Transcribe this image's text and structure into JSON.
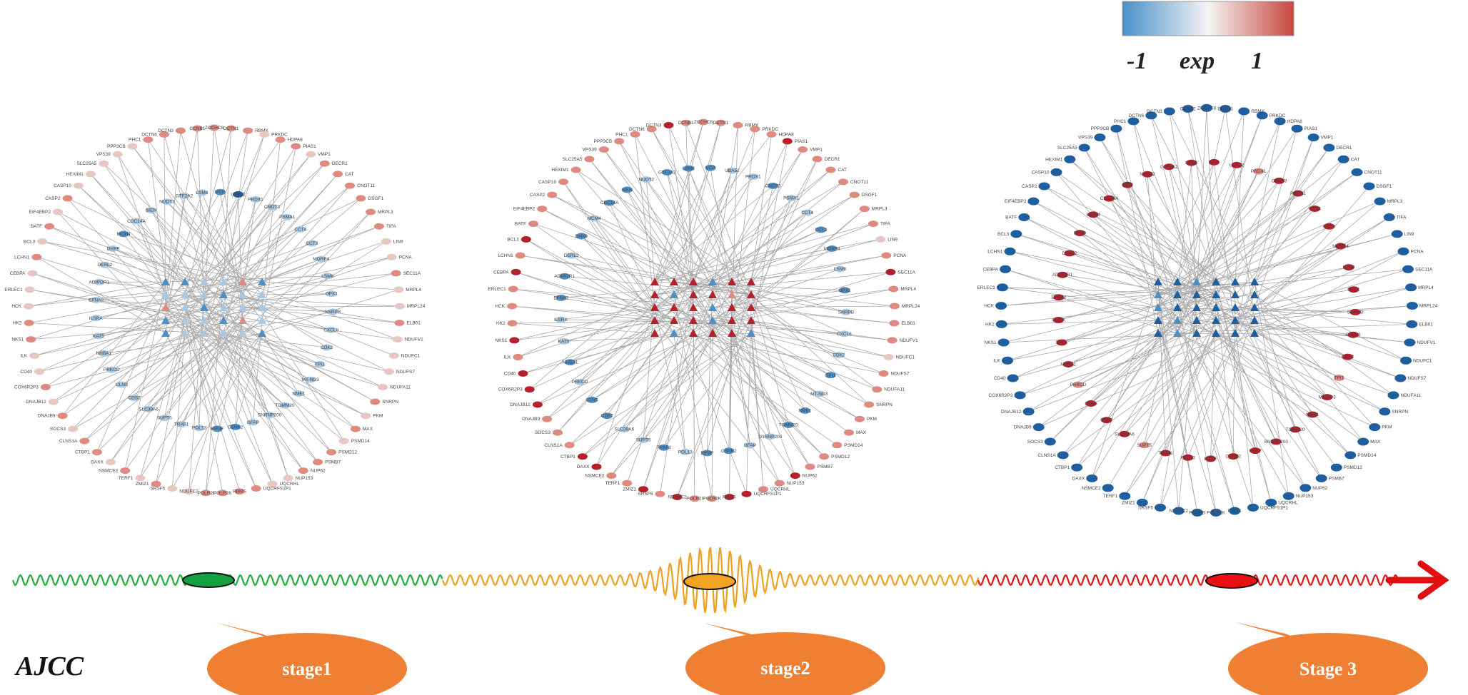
{
  "legend": {
    "low_label": "-1",
    "title": "exp",
    "high_label": "1",
    "colors": {
      "low": "#4a90c8",
      "mid": "#f4f4f4",
      "high": "#c8473f"
    }
  },
  "timeline": {
    "label": "AJCC",
    "segments": [
      {
        "name": "stage1",
        "color": "#1fae3f"
      },
      {
        "name": "stage2",
        "color": "#f0a020"
      },
      {
        "name": "stage3",
        "color": "#e01515"
      }
    ],
    "arrow_color": "#e01010",
    "markers": [
      {
        "name": "stage1",
        "fill": "#13a040"
      },
      {
        "name": "stage2",
        "fill": "#f2a321"
      },
      {
        "name": "stage3",
        "fill": "#e81010"
      }
    ]
  },
  "callouts": [
    {
      "label": "stage1",
      "color": "#ee7f33"
    },
    {
      "label": "stage2",
      "color": "#ee7f33"
    },
    {
      "label": "Stage 3",
      "color": "#ee7f33"
    }
  ],
  "networks": [
    {
      "name": "stage1",
      "outer_labels": [
        "ZCCHC8",
        "DCTN1",
        "RBMX",
        "PRKDC",
        "HDPA8",
        "PIAS1",
        "VMP1",
        "DECR1",
        "CAT",
        "CNOT11",
        "DSGF1",
        "MRPL3",
        "TIFA",
        "LIN9",
        "PCNA",
        "SEC11A",
        "MRPL4",
        "MRPL24",
        "ELB01",
        "NDUFV1",
        "NDUFC1",
        "NDUFS7",
        "NDUFA11",
        "SNRPN",
        "PKM",
        "MAX",
        "PSMD14",
        "PSMD12",
        "PSMB7",
        "NUP62",
        "NUP153",
        "UQCRHL",
        "UQCRFS1P1",
        "RBMS",
        "POLR2K",
        "POLR2I",
        "NDUFC2",
        "SRSF5",
        "ZMIZ1",
        "TERF1",
        "NSMCE2",
        "DAXX",
        "CTBP1",
        "CLNS1A",
        "SOCS3",
        "DNAJB9",
        "DNAJB12",
        "COX6R2P3",
        "CD40",
        "ILK",
        "NKS1",
        "HK2",
        "HCK",
        "ERLEC1",
        "CEBPA",
        "LCHN1",
        "BCL3",
        "BATF",
        "EIF4EBP2",
        "CASP2",
        "CASP10",
        "HEXIM1",
        "SLC25A5",
        "VPS39",
        "PPP3CB",
        "PHC1",
        "DCTN6",
        "DCTN3",
        "CCNB1"
      ],
      "outer_colors": [
        "h",
        "h",
        "h",
        "m",
        "h",
        "h",
        "m",
        "h",
        "h",
        "h",
        "h",
        "h",
        "h",
        "m",
        "m",
        "h",
        "m",
        "m",
        "h",
        "m",
        "m",
        "m",
        "m",
        "h",
        "m",
        "h",
        "m",
        "h",
        "h",
        "h",
        "m",
        "m",
        "h",
        "h",
        "h",
        "h",
        "m",
        "m",
        "h",
        "m",
        "h",
        "m",
        "h",
        "h",
        "m",
        "h",
        "m",
        "h",
        "m",
        "m",
        "h",
        "h",
        "m",
        "m",
        "m",
        "h",
        "m",
        "h",
        "m",
        "h",
        "m",
        "m",
        "m",
        "m",
        "m",
        "h",
        "h",
        "h",
        "h"
      ],
      "mid_labels": [
        "VCP",
        "UBA52",
        "PRDX1",
        "CNOT3",
        "PSMA1",
        "CCT4",
        "CCT3",
        "MORF4",
        "LSM8",
        "OPX1",
        "SNRPB",
        "CXCL8",
        "CDK2",
        "TPI1",
        "MT-ND3",
        "NME1",
        "TOMM20",
        "SNRNP200",
        "GFAP",
        "CSNK2",
        "EIF3F",
        "POL13",
        "TRAF1",
        "SUPT5",
        "SLC39A6",
        "CDS7",
        "CLNS",
        "PRKCD",
        "NHBA1",
        "KAT5",
        "ILSRA",
        "EFNA2",
        "ADIPOR1",
        "DERL2",
        "DHX9",
        "MCM4",
        "CDC14A",
        "SIEN",
        "NUDT2",
        "GTF2A2",
        "LSM8"
      ],
      "mid_colors": [
        "b",
        "B",
        "l",
        "l",
        "l",
        "l",
        "l",
        "l",
        "l",
        "l",
        "l",
        "l",
        "l",
        "l",
        "l",
        "l",
        "l",
        "l",
        "l",
        "b",
        "b",
        "l",
        "l",
        "l",
        "l",
        "l",
        "l",
        "l",
        "l",
        "l",
        "l",
        "l",
        "l",
        "l",
        "l",
        "b",
        "l",
        "l",
        "l",
        "l",
        "l"
      ],
      "center_colors": [
        "b",
        "b",
        "l",
        "l",
        "h",
        "b",
        "l",
        "l",
        "l",
        "b",
        "l",
        "l",
        "h",
        "l",
        "b",
        "l",
        "l",
        "l",
        "b",
        "l",
        "l",
        "b",
        "h",
        "l",
        "b",
        "l",
        "l",
        "l",
        "l",
        "b"
      ]
    },
    {
      "name": "stage2",
      "outer_labels": [
        "ZCCHC8",
        "DCTN1",
        "RBMX",
        "PRKDC",
        "HDPA8",
        "PIAS1",
        "VMP1",
        "DECR1",
        "CAT",
        "CNOT11",
        "DSGF1",
        "MRPL3",
        "TIFA",
        "LIN9",
        "PCNA",
        "SEC11A",
        "MRPL4",
        "MRPL24",
        "ELB01",
        "NDUFV1",
        "NDUFC1",
        "NDUFS7",
        "NDUFA11",
        "SNRPN",
        "PKM",
        "MAX",
        "PSMD14",
        "PSMD12",
        "PSMB7",
        "NUP62",
        "NUP153",
        "UQCRHL",
        "UQCRFS1P1",
        "RBMS",
        "POLR2K",
        "POLR2I",
        "NDUFC2",
        "SRSF5",
        "ZMIZ1",
        "TERF1",
        "NSMCE2",
        "DAXX",
        "CTBP1",
        "CLNS1A",
        "SOCS3",
        "DNAJB9",
        "DNAJB12",
        "COX6R2P3",
        "CD40",
        "ILK",
        "NKS1",
        "HK2",
        "HCK",
        "ERLEC1",
        "CEBPA",
        "LCHN1",
        "BCL3",
        "BATF",
        "EIF4EBP2",
        "CASP2",
        "CASP10",
        "HEXIM1",
        "SLC25A5",
        "VPS39",
        "PPP3CB",
        "PHC1",
        "DCTN6",
        "DCTN3",
        "CCNB1"
      ],
      "outer_colors": [
        "h",
        "h",
        "h",
        "h",
        "h",
        "H",
        "h",
        "h",
        "h",
        "h",
        "h",
        "h",
        "h",
        "m",
        "h",
        "H",
        "h",
        "h",
        "h",
        "h",
        "m",
        "h",
        "h",
        "h",
        "h",
        "h",
        "h",
        "h",
        "h",
        "H",
        "h",
        "h",
        "H",
        "H",
        "h",
        "h",
        "H",
        "h",
        "H",
        "h",
        "h",
        "H",
        "H",
        "h",
        "h",
        "h",
        "H",
        "H",
        "H",
        "h",
        "H",
        "h",
        "h",
        "h",
        "H",
        "h",
        "H",
        "h",
        "h",
        "h",
        "h",
        "h",
        "h",
        "h",
        "h",
        "h",
        "h",
        "H",
        "h"
      ],
      "mid_labels": [
        "VCP",
        "UBA52",
        "PRDX1",
        "CNOT3",
        "PSMA1",
        "CCT4",
        "CCT3",
        "MORF4",
        "LSM8",
        "OPX1",
        "SNRPB",
        "CXCL8",
        "CDK2",
        "TPI1",
        "MT-ND3",
        "NME1",
        "TOMM20",
        "SNRNP200",
        "GFAP",
        "CSNK2",
        "EIF3F",
        "POL13",
        "TRAF1",
        "SUPT5",
        "SLC39A6",
        "CDS7",
        "CLNS",
        "PRKCD",
        "NHBA1",
        "KAT5",
        "ILSRA",
        "EFNA2",
        "ADIPOR1",
        "DERL2",
        "DHX9",
        "MCM4",
        "CDC14A",
        "SIEN",
        "NUDT2",
        "GTF2A2",
        "LSM8"
      ],
      "mid_colors": [
        "b",
        "l",
        "l",
        "b",
        "l",
        "l",
        "b",
        "b",
        "l",
        "b",
        "l",
        "l",
        "l",
        "b",
        "l",
        "b",
        "b",
        "l",
        "l",
        "b",
        "b",
        "l",
        "b",
        "l",
        "l",
        "b",
        "b",
        "l",
        "b",
        "l",
        "l",
        "b",
        "b",
        "l",
        "b",
        "l",
        "b",
        "b",
        "l",
        "b",
        "b"
      ],
      "center_colors": [
        "H",
        "H",
        "H",
        "b",
        "H",
        "H",
        "H",
        "b",
        "H",
        "H",
        "h",
        "H",
        "H",
        "H",
        "H",
        "b",
        "H",
        "H",
        "H",
        "H",
        "H",
        "b",
        "H",
        "H",
        "H",
        "b",
        "H",
        "H",
        "H",
        "b"
      ]
    },
    {
      "name": "stage3",
      "outer_labels": [
        "ZCCHC8",
        "DCTN1",
        "RBMX",
        "PRKDC",
        "HDPA8",
        "PIAS1",
        "VMP1",
        "DECR1",
        "CAT",
        "CNOT11",
        "DSGF1",
        "MRPL3",
        "TIFA",
        "LIN9",
        "PCNA",
        "SEC11A",
        "MRPL4",
        "MRPL24",
        "ELB01",
        "NDUFV1",
        "NDUFC1",
        "NDUFS7",
        "NDUFA11",
        "SNRPN",
        "PKM",
        "MAX",
        "PSMD14",
        "PSMD12",
        "PSMB7",
        "NUP62",
        "NUP153",
        "UQCRHL",
        "UQCRFS1P1",
        "RBMS",
        "POLR2K",
        "POLR2I",
        "NDUFC2",
        "SRSF5",
        "ZMIZ1",
        "TERF1",
        "NSMCE2",
        "DAXX",
        "CTBP1",
        "CLNS1A",
        "SOCS3",
        "DNAJB9",
        "DNAJB12",
        "COX6R2P3",
        "CD40",
        "ILK",
        "NKS1",
        "HK2",
        "HCK",
        "ERLEC1",
        "CEBPA",
        "LCHN1",
        "BCL3",
        "BATF",
        "EIF4EBP2",
        "CASP2",
        "CASP10",
        "HEXIM1",
        "SLC25A5",
        "VPS39",
        "PPP3CB",
        "PHC1",
        "DCTN6",
        "DCTN3",
        "CCNB1"
      ],
      "outer_colors": [
        "B",
        "B",
        "B",
        "B",
        "B",
        "B",
        "B",
        "B",
        "B",
        "B",
        "B",
        "B",
        "B",
        "B",
        "B",
        "B",
        "B",
        "B",
        "B",
        "B",
        "B",
        "B",
        "B",
        "B",
        "B",
        "B",
        "B",
        "B",
        "B",
        "B",
        "B",
        "B",
        "B",
        "B",
        "B",
        "B",
        "B",
        "B",
        "B",
        "B",
        "B",
        "B",
        "B",
        "B",
        "B",
        "B",
        "B",
        "B",
        "B",
        "B",
        "B",
        "B",
        "B",
        "B",
        "B",
        "B",
        "B",
        "B",
        "B",
        "B",
        "B",
        "B",
        "B",
        "B",
        "B",
        "B",
        "B",
        "B",
        "B"
      ],
      "mid_labels": [
        "VCP",
        "UBA52",
        "PRDX1",
        "CNOT3",
        "PSMA1",
        "CCT4",
        "CCT3",
        "MORF4",
        "LSM8",
        "OPX1",
        "SNRPB",
        "CXCL8",
        "CDK2",
        "TPI1",
        "MT-ND3",
        "NME1",
        "TOMM20",
        "SNRNP200",
        "GFAP",
        "CSNK2",
        "EIF3F",
        "POL13",
        "TRAF1",
        "SUPT5",
        "SLC39A6",
        "CDS7",
        "CLNS",
        "PRKCD",
        "NHBA1",
        "KAT5",
        "ILSRA",
        "EFNA2",
        "ADIPOR1",
        "DERL2",
        "DHX9",
        "MCM4",
        "CDC14A",
        "SIEN",
        "NUDT2",
        "GTF2A2",
        "LSM8"
      ],
      "mid_colors": [
        "H",
        "H",
        "h",
        "H",
        "H",
        "H",
        "H",
        "H",
        "H",
        "H",
        "H",
        "H",
        "H",
        "h",
        "H",
        "H",
        "H",
        "H",
        "H",
        "H",
        "H",
        "H",
        "H",
        "h",
        "H",
        "H",
        "H",
        "h",
        "H",
        "H",
        "H",
        "H",
        "H",
        "H",
        "H",
        "H",
        "H",
        "H",
        "H",
        "H",
        "H"
      ],
      "center_colors": [
        "B",
        "B",
        "b",
        "B",
        "B",
        "B",
        "b",
        "B",
        "B",
        "B",
        "B",
        "B",
        "b",
        "B",
        "B",
        "B",
        "B",
        "B",
        "B",
        "b",
        "B",
        "B",
        "B",
        "B",
        "B",
        "b",
        "B",
        "B",
        "B",
        "B"
      ]
    }
  ]
}
